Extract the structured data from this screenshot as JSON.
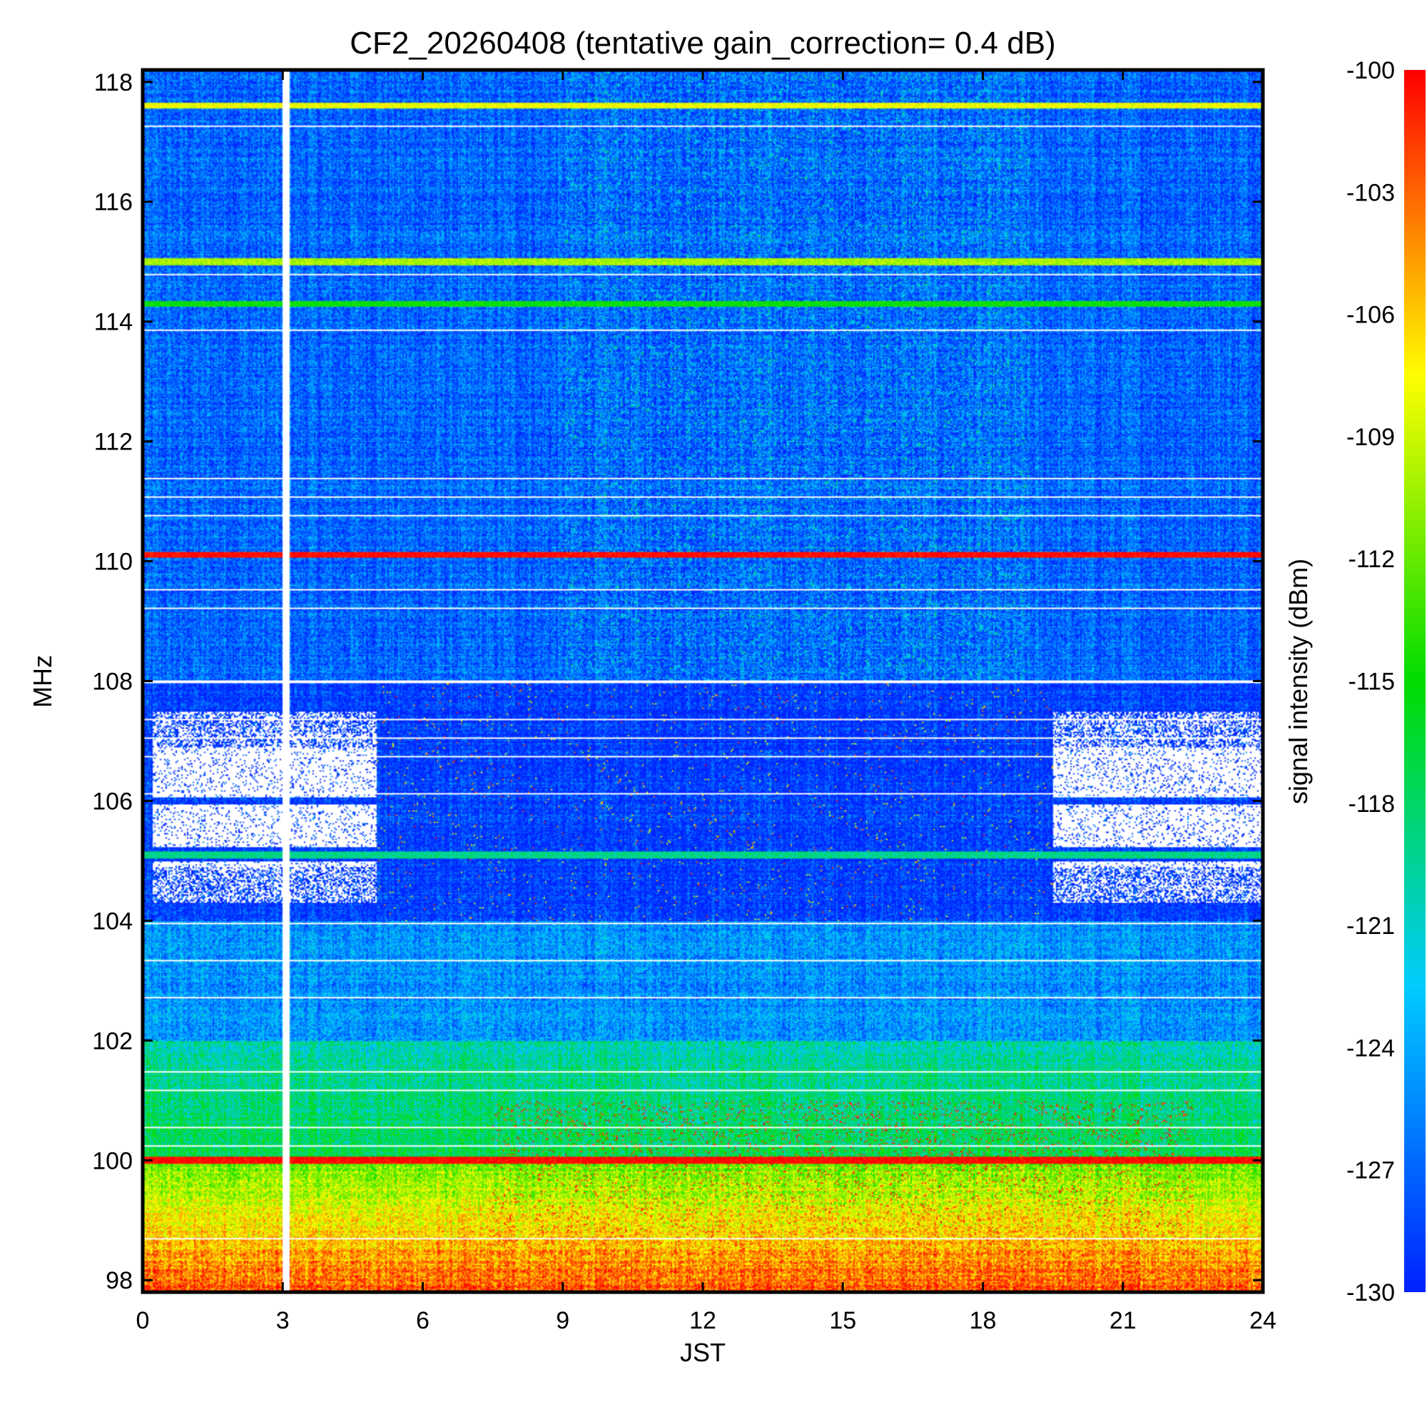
{
  "chart_data": {
    "type": "heatmap",
    "title": "CF2_20260408 (tentative gain_correction=  0.4 dB)",
    "xlabel": "JST",
    "ylabel": "MHz",
    "colorbar_label": "signal intensity (dBm)",
    "xlim": [
      0,
      24
    ],
    "ylim": [
      97.8,
      118.2
    ],
    "clim": [
      -130,
      -100
    ],
    "x_ticks": [
      0,
      3,
      6,
      9,
      12,
      15,
      18,
      21,
      24
    ],
    "x_tick_labels": [
      "0",
      "3",
      "6",
      "9",
      "12",
      "15",
      "18",
      "21",
      "24"
    ],
    "y_ticks": [
      98,
      100,
      102,
      104,
      106,
      108,
      110,
      112,
      114,
      116,
      118
    ],
    "y_tick_labels": [
      "98",
      "100",
      "102",
      "104",
      "106",
      "108",
      "110",
      "112",
      "114",
      "116",
      "118"
    ],
    "colorbar_ticks": [
      -100,
      -103,
      -106,
      -109,
      -112,
      -115,
      -118,
      -121,
      -124,
      -127,
      -130
    ],
    "colorbar_tick_labels": [
      "-100",
      "-103",
      "-106",
      "-109",
      "-112",
      "-115",
      "-118",
      "-121",
      "-124",
      "-127",
      "-130"
    ],
    "data_gap_hours": [
      3.0,
      3.15
    ],
    "persistent_bands": [
      {
        "freq_mhz": 117.6,
        "level_dbm": -108
      },
      {
        "freq_mhz": 115.0,
        "level_dbm": -110
      },
      {
        "freq_mhz": 114.3,
        "level_dbm": -115
      },
      {
        "freq_mhz": 110.1,
        "level_dbm": -100
      },
      {
        "freq_mhz": 105.1,
        "level_dbm": -119
      },
      {
        "freq_mhz": 100.0,
        "level_dbm": -100
      }
    ],
    "background_levels": [
      {
        "freq_range_mhz": [
          108,
          118.2
        ],
        "level_dbm": -127
      },
      {
        "freq_range_mhz": [
          104,
          108
        ],
        "level_dbm": -129
      },
      {
        "freq_range_mhz": [
          102,
          104
        ],
        "level_dbm": -125
      },
      {
        "freq_range_mhz": [
          100,
          102
        ],
        "level_dbm": -120
      },
      {
        "freq_range_mhz": [
          97.8,
          100
        ],
        "level_dbm": -112
      }
    ],
    "blank_regions": [
      {
        "time_range_h": [
          0.2,
          5.0
        ],
        "freq_range_mhz": [
          104.3,
          107.5
        ]
      },
      {
        "time_range_h": [
          19.5,
          24
        ],
        "freq_range_mhz": [
          104.3,
          107.5
        ]
      }
    ],
    "colormap": [
      "#0022ff",
      "#00ccff",
      "#00dd00",
      "#ffff00",
      "#ff0000"
    ]
  }
}
